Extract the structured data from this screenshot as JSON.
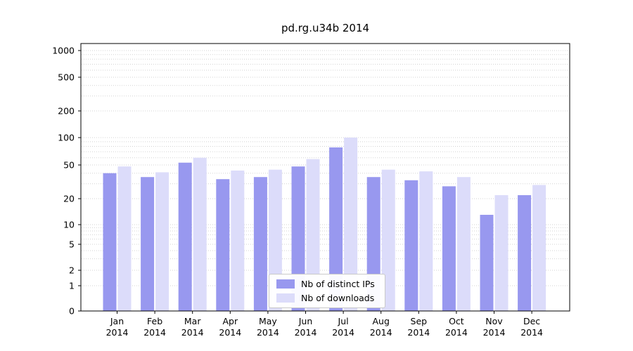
{
  "chart_data": {
    "type": "bar",
    "title": "pd.rg.u34b 2014",
    "categories": [
      "Jan",
      "Feb",
      "Mar",
      "Apr",
      "May",
      "Jun",
      "Jul",
      "Aug",
      "Sep",
      "Oct",
      "Nov",
      "Dec"
    ],
    "category_year": "2014",
    "series": [
      {
        "name": "Nb of distinct IPs",
        "color": "#9898ef",
        "values": [
          40,
          36,
          53,
          34,
          36,
          48,
          78,
          36,
          33,
          28,
          13,
          22
        ]
      },
      {
        "name": "Nb of downloads",
        "color": "#dcdcfa",
        "values": [
          48,
          41,
          60,
          43,
          44,
          58,
          100,
          44,
          42,
          36,
          22,
          29
        ]
      }
    ],
    "yscale": "symlog",
    "yticks": [
      0,
      1,
      2,
      5,
      10,
      20,
      50,
      100,
      200,
      500,
      1000
    ],
    "ylim": [
      0,
      1100
    ],
    "xlabel": "",
    "ylabel": "",
    "grid": "horizontal-dotted",
    "grid_color": "#d3d3d3",
    "axis_color": "#000000",
    "legend_position": "lower-center"
  }
}
